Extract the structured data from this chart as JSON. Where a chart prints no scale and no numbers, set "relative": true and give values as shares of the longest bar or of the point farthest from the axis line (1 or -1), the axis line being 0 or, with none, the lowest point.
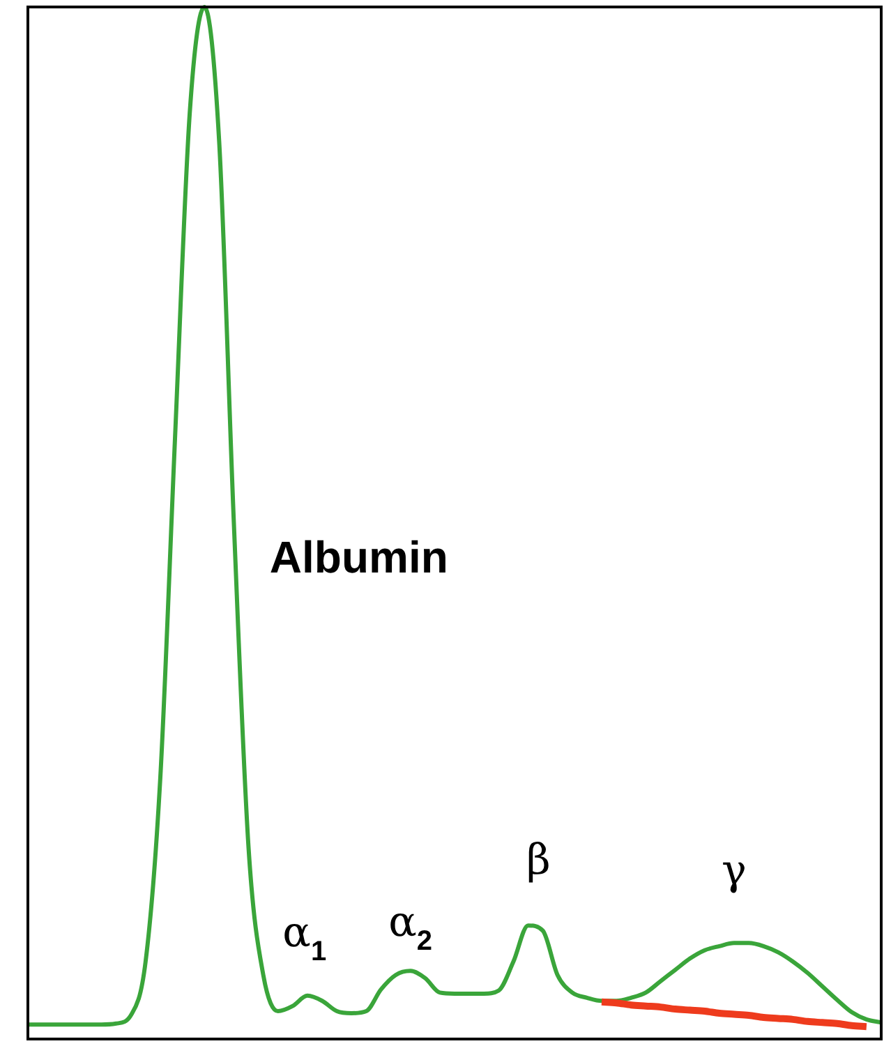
{
  "chart_data": {
    "type": "line",
    "relative": true,
    "legend": false,
    "marker": "none",
    "categories": [
      null,
      null,
      null,
      null,
      null,
      null,
      null,
      null,
      null,
      null,
      null,
      null,
      null,
      null,
      null,
      null,
      null,
      null,
      null,
      null,
      null,
      null,
      null,
      null,
      null,
      null,
      null,
      null,
      null,
      null,
      null,
      null,
      null,
      null,
      null,
      null,
      null,
      null,
      null,
      null,
      null,
      null,
      null,
      null,
      null,
      null,
      null,
      null,
      null,
      null,
      null,
      null,
      null,
      null,
      null,
      null,
      null,
      null,
      null
    ],
    "series": [
      {
        "color": "#3aa53a",
        "values": [
          0.014,
          0.014,
          0.014,
          0.014,
          0.014,
          0.014,
          0.015,
          0.023,
          0.075,
          0.253,
          0.582,
          0.897,
          1,
          0.87,
          0.5,
          0.185,
          0.062,
          0.027,
          0.032,
          0.042,
          0.037,
          0.027,
          0.025,
          0.027,
          0.048,
          0.062,
          0.066,
          0.059,
          0.045,
          0.044,
          0.044,
          0.044,
          0.047,
          0.075,
          0.11,
          0.105,
          0.062,
          0.045,
          0.04,
          0.037,
          0.037,
          0.04,
          0.045,
          0.056,
          0.067,
          0.078,
          0.086,
          0.09,
          0.093,
          0.093,
          0.09,
          0.084,
          0.075,
          0.064,
          0.051,
          0.038,
          0.026,
          0.019,
          0.016
        ]
      },
      {
        "color": "#ee3b1d",
        "values": [
          null,
          null,
          null,
          null,
          null,
          null,
          null,
          null,
          null,
          null,
          null,
          null,
          null,
          null,
          null,
          null,
          null,
          null,
          null,
          null,
          null,
          null,
          null,
          null,
          null,
          null,
          null,
          null,
          null,
          null,
          null,
          null,
          null,
          null,
          null,
          null,
          null,
          null,
          null,
          0.036,
          0.035,
          0.033,
          0.032,
          0.031,
          0.029,
          0.028,
          0.027,
          0.025,
          0.024,
          0.023,
          0.021,
          0.02,
          0.019,
          0.017,
          0.016,
          0.015,
          0.013,
          0.012,
          null
        ]
      }
    ],
    "annotations": [
      "Albumin",
      "α$_{1}$",
      "α$_{2}$",
      "β",
      "γ"
    ]
  }
}
